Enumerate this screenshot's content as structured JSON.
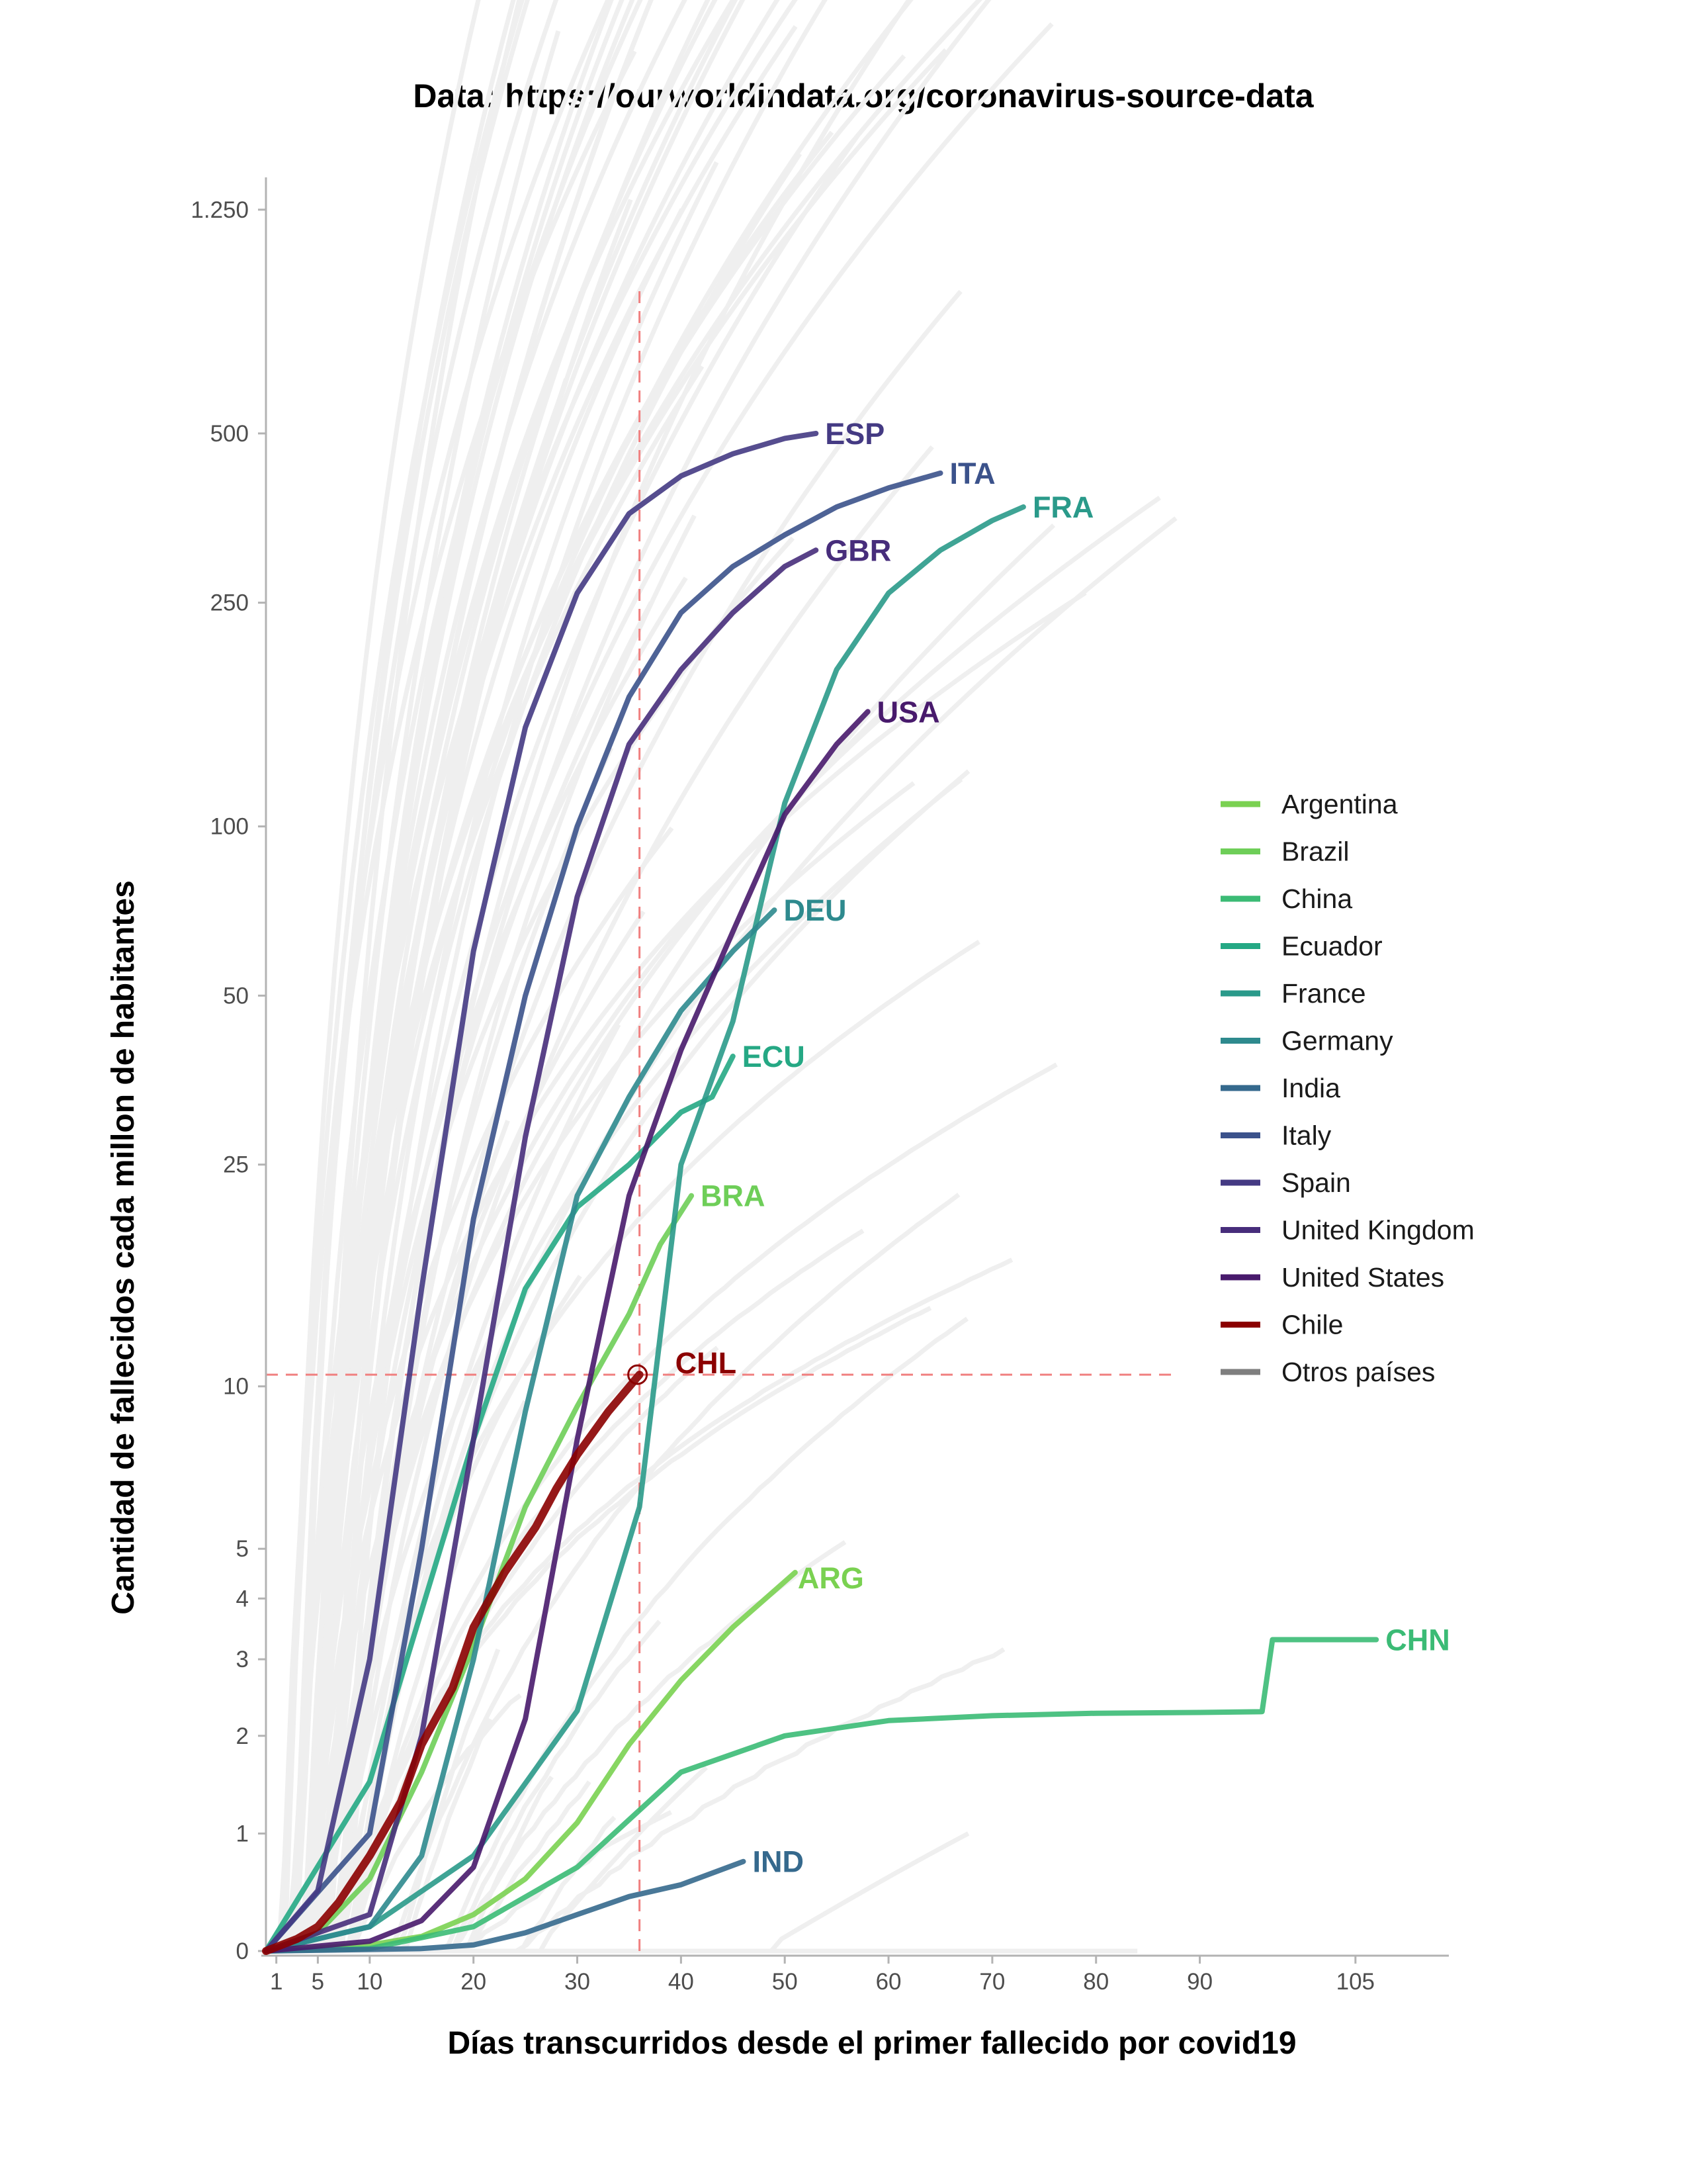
{
  "chart_data": {
    "type": "line",
    "title": "Data: https://ourworldindata.org/coronavirus-source-data",
    "xlabel": "Días transcurridos desde el primer fallecido por covid19",
    "ylabel": "Cantidad de fallecidos cada millon de habitantes",
    "y_scale": "pseudo-log",
    "x_ticks": [
      1,
      5,
      10,
      20,
      30,
      40,
      50,
      60,
      70,
      80,
      90,
      105
    ],
    "y_ticks": [
      0,
      1,
      2,
      3,
      4,
      5,
      10,
      25,
      50,
      100,
      250,
      500,
      1250
    ],
    "y_tick_labels": [
      "0",
      "1",
      "2",
      "3",
      "4",
      "5",
      "10",
      "25",
      "50",
      "100",
      "250",
      "500",
      "1.250"
    ],
    "xlim": [
      0,
      114
    ],
    "ylim": [
      0,
      1400
    ],
    "grid": false,
    "legend_position": "right",
    "reference": {
      "x": 36,
      "y": 10.5,
      "label": "CHL"
    },
    "series": [
      {
        "name": "Argentina",
        "label": "ARG",
        "color": "#7ad151",
        "x": [
          0,
          10,
          15,
          20,
          25,
          30,
          35,
          40,
          45,
          51
        ],
        "y": [
          0,
          0.05,
          0.12,
          0.3,
          0.6,
          1.1,
          1.9,
          2.7,
          3.5,
          4.5
        ]
      },
      {
        "name": "Brazil",
        "label": "BRA",
        "color": "#6ece58",
        "x": [
          0,
          5,
          10,
          15,
          20,
          25,
          30,
          35,
          38,
          41
        ],
        "y": [
          0,
          0.15,
          0.6,
          1.6,
          3.2,
          6.0,
          9.2,
          13.5,
          18,
          22
        ]
      },
      {
        "name": "China",
        "label": "CHN",
        "color": "#3bbb75",
        "x": [
          0,
          10,
          20,
          30,
          40,
          50,
          60,
          70,
          80,
          90,
          96,
          97,
          107
        ],
        "y": [
          0,
          0.02,
          0.2,
          0.7,
          1.6,
          2.0,
          2.18,
          2.24,
          2.27,
          2.28,
          2.29,
          3.3,
          3.3
        ]
      },
      {
        "name": "Ecuador",
        "label": "ECU",
        "color": "#25a884",
        "x": [
          0,
          10,
          20,
          25,
          30,
          35,
          40,
          43,
          45
        ],
        "y": [
          0,
          1.5,
          8,
          15,
          21,
          25,
          31,
          33,
          39
        ]
      },
      {
        "name": "France",
        "label": "FRA",
        "color": "#2a9a8a",
        "x": [
          0,
          10,
          20,
          30,
          36,
          40,
          45,
          50,
          55,
          60,
          65,
          70,
          73
        ],
        "y": [
          0,
          0.2,
          0.8,
          2.3,
          6,
          25,
          45,
          110,
          190,
          260,
          310,
          350,
          370
        ]
      },
      {
        "name": "Germany",
        "label": "DEU",
        "color": "#2e8a8e",
        "x": [
          0,
          10,
          15,
          20,
          25,
          30,
          35,
          40,
          45,
          49
        ],
        "y": [
          0,
          0.2,
          0.8,
          3,
          9,
          22,
          33,
          47,
          60,
          71
        ]
      },
      {
        "name": "India",
        "label": "IND",
        "color": "#35698d",
        "x": [
          0,
          15,
          20,
          25,
          30,
          35,
          40,
          46
        ],
        "y": [
          0,
          0.02,
          0.05,
          0.15,
          0.3,
          0.45,
          0.55,
          0.75
        ]
      },
      {
        "name": "Italy",
        "label": "ITA",
        "color": "#3b528b",
        "x": [
          0,
          10,
          15,
          20,
          25,
          30,
          35,
          40,
          45,
          50,
          55,
          60,
          65
        ],
        "y": [
          0,
          1,
          5,
          20,
          50,
          100,
          170,
          240,
          290,
          330,
          370,
          400,
          425
        ]
      },
      {
        "name": "Spain",
        "label": "ESP",
        "color": "#443a83",
        "x": [
          0,
          5,
          10,
          15,
          20,
          25,
          30,
          35,
          40,
          45,
          50,
          53
        ],
        "y": [
          0,
          0.5,
          3,
          15,
          60,
          150,
          260,
          360,
          420,
          460,
          490,
          500
        ]
      },
      {
        "name": "United Kingdom",
        "label": "GBR",
        "color": "#472d7b",
        "x": [
          0,
          10,
          15,
          20,
          25,
          30,
          35,
          40,
          45,
          50,
          53
        ],
        "y": [
          0,
          0.3,
          2,
          8,
          28,
          75,
          140,
          190,
          240,
          290,
          310
        ]
      },
      {
        "name": "United States",
        "label": "USA",
        "color": "#481a6c",
        "x": [
          0,
          10,
          15,
          20,
          25,
          30,
          35,
          40,
          45,
          50,
          55,
          58
        ],
        "y": [
          0,
          0.08,
          0.25,
          0.7,
          2.2,
          8,
          22,
          40,
          65,
          105,
          140,
          160
        ]
      },
      {
        "name": "Chile",
        "label": "CHL",
        "color": "#8b0000",
        "x": [
          0,
          3,
          5,
          7,
          10,
          13,
          15,
          18,
          20,
          23,
          26,
          28,
          30,
          33,
          36
        ],
        "y": [
          0,
          0.1,
          0.2,
          0.4,
          0.8,
          1.3,
          1.9,
          2.6,
          3.5,
          4.5,
          5.5,
          6.5,
          7.5,
          9.0,
          10.5
        ]
      },
      {
        "name": "Otros países",
        "label": "",
        "color": "#7f7f7f",
        "x": [],
        "y": []
      }
    ]
  }
}
